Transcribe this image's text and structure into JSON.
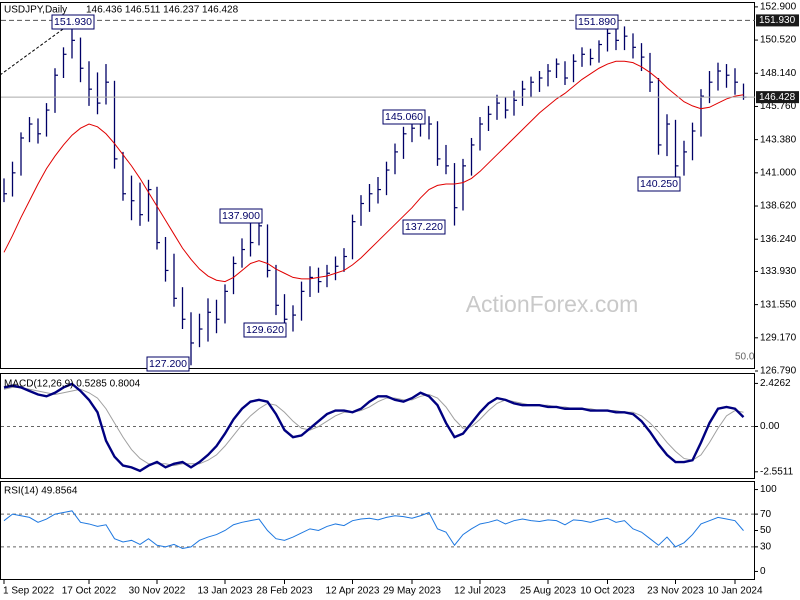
{
  "watermark": "ActionForex.com",
  "chart_data": [
    {
      "type": "ohlc",
      "title": "USDJPY,Daily",
      "subtitle": "146.436 146.511 146.237 146.428",
      "color": "#000066",
      "categories": [
        "1 Sep 2022",
        null,
        null,
        null,
        null,
        null,
        null,
        null,
        null,
        null,
        "17 Oct 2022",
        null,
        null,
        null,
        null,
        null,
        null,
        null,
        "30 Nov 2022",
        null,
        null,
        null,
        null,
        null,
        null,
        null,
        "13 Jan 2023",
        null,
        null,
        null,
        null,
        null,
        null,
        "28 Feb 2023",
        null,
        null,
        null,
        null,
        null,
        null,
        null,
        "12 Apr 2023",
        null,
        null,
        null,
        null,
        null,
        null,
        "29 May 2023",
        null,
        null,
        null,
        null,
        null,
        null,
        null,
        "12 Jul 2023",
        null,
        null,
        null,
        null,
        null,
        null,
        null,
        "25 Aug 2023",
        null,
        null,
        null,
        null,
        null,
        null,
        "10 Oct 2023",
        null,
        null,
        null,
        null,
        null,
        null,
        null,
        "23 Nov 2023",
        null,
        null,
        null,
        null,
        null,
        null,
        "10 Jan 2024",
        null
      ],
      "high": [
        140.6,
        141.8,
        143.9,
        145,
        144.9,
        146,
        148.5,
        150,
        151.93,
        150.7,
        149,
        148.2,
        148.8,
        147.6,
        142.5,
        140.8,
        140.3,
        140.5,
        140,
        136.4,
        135.2,
        132.8,
        131,
        130.9,
        132,
        131.9,
        133,
        135,
        136.3,
        137.4,
        137.9,
        137.3,
        134.4,
        132.3,
        131.5,
        133.2,
        134.3,
        134.2,
        134.4,
        135,
        135.6,
        138,
        139.4,
        140.2,
        140.7,
        141.8,
        143.1,
        144.3,
        144.9,
        145,
        145.06,
        144.7,
        143,
        141.7,
        142,
        143.5,
        145,
        145.8,
        146.6,
        146.4,
        146.9,
        147.6,
        147.9,
        148.3,
        148.8,
        149.2,
        149,
        149.5,
        150,
        149.9,
        150.5,
        151.6,
        151.89,
        151.5,
        151,
        150.3,
        149.6,
        147.8,
        145.2,
        144.8,
        143.3,
        144.6,
        147,
        148.3,
        148.9,
        148.8,
        148.5,
        147.4
      ],
      "low": [
        138.9,
        139.3,
        140.8,
        143.2,
        143.1,
        143.6,
        145.3,
        147.8,
        149.2,
        147.5,
        145.8,
        145.2,
        145.9,
        141.3,
        139,
        137.6,
        137.2,
        137.5,
        135.5,
        133.2,
        131.4,
        129.8,
        127.2,
        128.5,
        128.9,
        129.5,
        130.2,
        132.3,
        134.2,
        135,
        135.8,
        133.5,
        130.8,
        129.9,
        129.62,
        130.4,
        132.1,
        132.4,
        132.8,
        133.3,
        133.9,
        134.8,
        137.2,
        138.2,
        138.8,
        139.4,
        140.9,
        142,
        143.2,
        143.6,
        143.4,
        141.5,
        140.9,
        137.22,
        138.3,
        140.8,
        142.6,
        144,
        144.8,
        144.9,
        145.1,
        145.8,
        146.4,
        146.8,
        147.2,
        147.8,
        147.3,
        147.5,
        148.6,
        148.7,
        148.9,
        149.7,
        149.8,
        149.8,
        149.2,
        148.3,
        146.8,
        142.3,
        142.2,
        140.25,
        140.8,
        141.9,
        143.6,
        146,
        146.9,
        147.1,
        146.6,
        146.237
      ],
      "close": [
        139.5,
        141,
        143.5,
        144.5,
        143.8,
        145.5,
        148,
        149.5,
        150.5,
        148.5,
        147,
        146,
        147.5,
        142,
        139.5,
        139,
        138,
        139.8,
        136,
        134,
        132,
        130.5,
        128.8,
        129.8,
        131,
        130.5,
        132.5,
        134.5,
        135.5,
        136,
        137.2,
        134,
        131.5,
        130.5,
        130.8,
        132.5,
        133.5,
        133.2,
        133.8,
        134.3,
        135,
        137.5,
        138.8,
        139.5,
        139.8,
        141.2,
        142.5,
        143.8,
        144.2,
        144.8,
        144.5,
        142,
        141.5,
        138.5,
        141.5,
        143,
        144.5,
        145.2,
        146,
        145.5,
        146.2,
        147,
        147.5,
        147.8,
        148.3,
        148.8,
        147.8,
        149,
        149.5,
        149.2,
        150.2,
        151,
        150.5,
        150.8,
        150,
        149.3,
        147.5,
        143,
        144.5,
        141.5,
        142.5,
        144,
        146.5,
        147.5,
        148.3,
        148,
        147.5,
        146.428
      ],
      "lines": [
        {
          "color": "#e00000",
          "values": [
            135.3,
            136.5,
            137.8,
            139,
            140.2,
            141.3,
            142.2,
            143,
            143.7,
            144.2,
            144.5,
            144.3,
            143.8,
            143.1,
            142.3,
            141.5,
            140.6,
            139.6,
            138.6,
            137.6,
            136.6,
            135.6,
            134.8,
            134.1,
            133.6,
            133.3,
            133.2,
            133.5,
            134,
            134.5,
            134.7,
            134.5,
            134.1,
            133.8,
            133.5,
            133.4,
            133.4,
            133.5,
            133.6,
            133.8,
            134,
            134.4,
            134.9,
            135.5,
            136.1,
            136.7,
            137.3,
            137.9,
            138.5,
            139.2,
            139.8,
            140.1,
            140.2,
            140.2,
            140.3,
            140.6,
            141.1,
            141.7,
            142.3,
            142.9,
            143.5,
            144.1,
            144.7,
            145.3,
            145.8,
            146.3,
            146.7,
            147.2,
            147.7,
            148.1,
            148.5,
            148.8,
            149,
            149,
            148.9,
            148.6,
            148.2,
            147.7,
            147.1,
            146.6,
            146.1,
            145.8,
            145.6,
            145.7,
            146,
            146.3,
            146.5,
            146.6
          ]
        }
      ],
      "ylim": [
        126.79,
        153.25
      ],
      "yticks": [
        {
          "value": 152.9,
          "label": "152.900"
        },
        {
          "value": 150.52,
          "label": "150.520"
        },
        {
          "value": 148.14,
          "label": "148.140"
        },
        {
          "value": 145.76,
          "label": "145.760"
        },
        {
          "value": 143.38,
          "label": "143.380"
        },
        {
          "value": 141,
          "label": "141.000"
        },
        {
          "value": 138.62,
          "label": "138.620"
        },
        {
          "value": 136.24,
          "label": "136.240"
        },
        {
          "value": 133.93,
          "label": "133.930"
        },
        {
          "value": 131.55,
          "label": "131.550"
        },
        {
          "value": 129.17,
          "label": "129.170"
        },
        {
          "value": 126.79,
          "label": "126.790"
        }
      ],
      "price_lines": [
        {
          "value": 151.93,
          "label": "151.930",
          "color": "#555555",
          "dashed": true
        },
        {
          "value": 146.428,
          "label": "146.428",
          "color": "#aaaaaa",
          "dashed": false
        }
      ],
      "annotations": [
        "151.930",
        "137.900",
        "129.620",
        "127.200",
        "145.060",
        "137.220",
        "151.890",
        "140.250"
      ],
      "fib_label": "50.0"
    },
    {
      "type": "line",
      "title": "MACD(12,26,9) 0.5285 0.8004",
      "series": [
        {
          "color": "#000080",
          "values": [
            2.2,
            2.3,
            2.2,
            2.0,
            1.8,
            1.7,
            1.9,
            2.2,
            2.4,
            2.0,
            1.5,
            0.8,
            -0.8,
            -1.7,
            -2.2,
            -2.3,
            -2.5,
            -2.2,
            -2.0,
            -2.3,
            -2.1,
            -2.0,
            -2.3,
            -2.0,
            -1.6,
            -1.1,
            -0.4,
            0.4,
            1.0,
            1.4,
            1.5,
            1.4,
            0.7,
            -0.2,
            -0.6,
            -0.5,
            -0.1,
            0.3,
            0.7,
            0.9,
            0.9,
            0.8,
            1.0,
            1.4,
            1.7,
            1.7,
            1.5,
            1.4,
            1.6,
            1.9,
            1.7,
            1.2,
            0.2,
            -0.6,
            -0.4,
            0.2,
            0.8,
            1.3,
            1.6,
            1.5,
            1.3,
            1.2,
            1.2,
            1.2,
            1.1,
            1.1,
            1.0,
            1.0,
            1.0,
            0.9,
            0.9,
            0.9,
            0.8,
            0.8,
            0.7,
            0.3,
            -0.3,
            -1.0,
            -1.6,
            -2.0,
            -2.0,
            -1.9,
            -0.9,
            0.2,
            1.0,
            1.1,
            1.0,
            0.5285
          ]
        },
        {
          "color": "#a0a0a0",
          "values": [
            2.1,
            2.2,
            2.2,
            2.1,
            2.0,
            1.9,
            1.8,
            1.9,
            2.0,
            2.1,
            1.9,
            1.6,
            1.0,
            0.2,
            -0.6,
            -1.3,
            -1.8,
            -2.1,
            -2.1,
            -2.1,
            -2.2,
            -2.1,
            -2.1,
            -2.1,
            -1.9,
            -1.6,
            -1.1,
            -0.5,
            0.1,
            0.6,
            1.0,
            1.3,
            1.2,
            0.8,
            0.3,
            -0.1,
            -0.2,
            0.0,
            0.3,
            0.6,
            0.8,
            0.8,
            0.9,
            1.1,
            1.4,
            1.6,
            1.6,
            1.5,
            1.5,
            1.7,
            1.8,
            1.6,
            1.1,
            0.4,
            -0.1,
            0.0,
            0.4,
            0.9,
            1.3,
            1.5,
            1.4,
            1.3,
            1.2,
            1.2,
            1.2,
            1.1,
            1.1,
            1.0,
            1.0,
            1.0,
            0.9,
            0.9,
            0.9,
            0.8,
            0.8,
            0.6,
            0.2,
            -0.3,
            -0.9,
            -1.4,
            -1.8,
            -1.9,
            -1.6,
            -0.9,
            -0.1,
            0.6,
            0.9,
            0.8004
          ]
        }
      ],
      "ylim": [
        -2.9,
        2.9
      ],
      "yticks": [
        2.4262,
        {
          "value": 0,
          "label": "0.00"
        },
        -2.5511
      ],
      "levels": [
        0
      ]
    },
    {
      "type": "line",
      "title": "RSI(14) 49.8564",
      "series": [
        {
          "color": "#1e78e0",
          "values": [
            62,
            70,
            68,
            66,
            60,
            64,
            70,
            72,
            74,
            60,
            58,
            55,
            57,
            40,
            36,
            38,
            33,
            40,
            32,
            30,
            33,
            28,
            30,
            38,
            42,
            45,
            50,
            57,
            60,
            62,
            64,
            50,
            40,
            38,
            42,
            47,
            52,
            50,
            55,
            58,
            56,
            62,
            64,
            65,
            63,
            66,
            68,
            67,
            65,
            68,
            72,
            52,
            48,
            32,
            45,
            52,
            58,
            60,
            63,
            58,
            62,
            64,
            62,
            61,
            63,
            62,
            57,
            63,
            62,
            60,
            63,
            65,
            60,
            62,
            52,
            48,
            40,
            32,
            42,
            30,
            35,
            45,
            58,
            62,
            66,
            64,
            62,
            49.8564
          ]
        }
      ],
      "ylim": [
        -8,
        108
      ],
      "yticks": [
        100,
        70,
        50,
        30,
        0
      ],
      "levels": [
        70,
        30
      ]
    }
  ]
}
